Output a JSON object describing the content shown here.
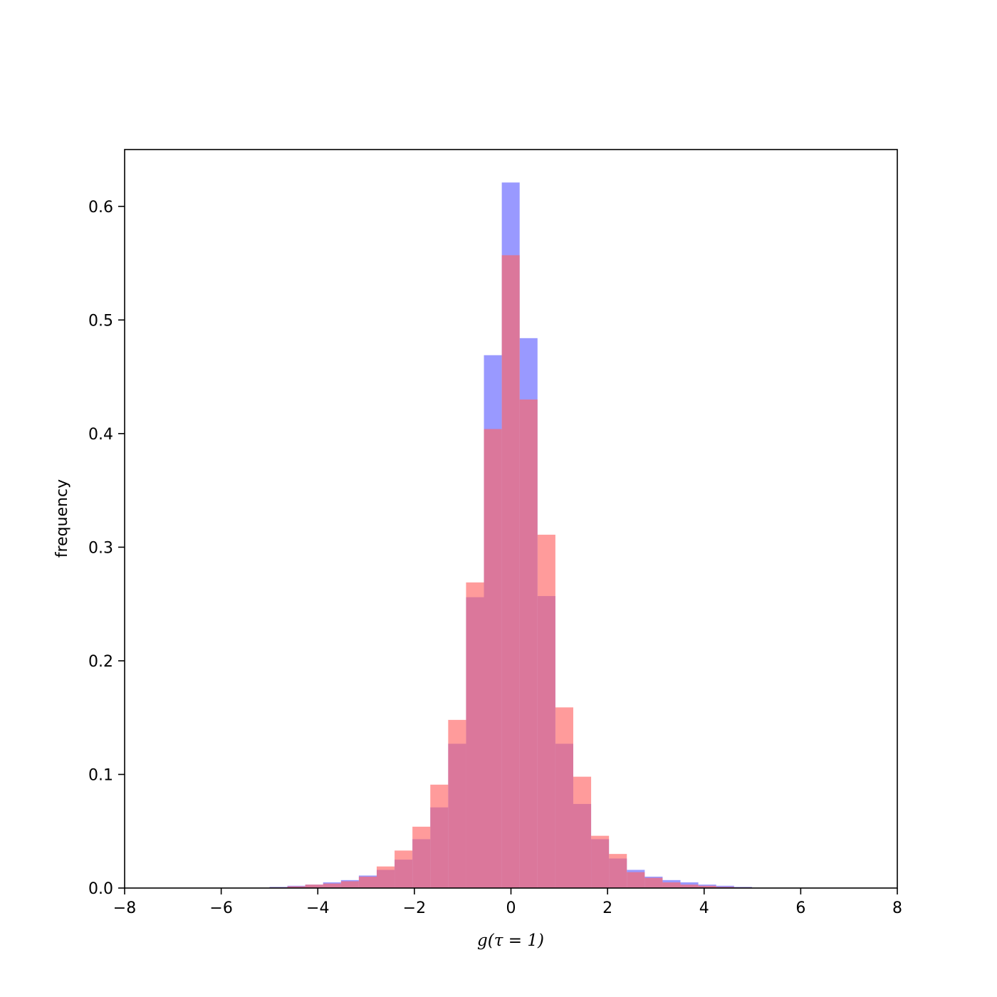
{
  "chart_data": {
    "type": "bar",
    "xlabel": "g(τ = 1)",
    "ylabel": "frequency",
    "xlim": [
      -8,
      8
    ],
    "ylim": [
      0,
      0.65
    ],
    "xticks": [
      -8,
      -6,
      -4,
      -2,
      0,
      2,
      4,
      6,
      8
    ],
    "xtick_labels": [
      "−8",
      "−6",
      "−4",
      "−2",
      "0",
      "2",
      "4",
      "6",
      "8"
    ],
    "yticks": [
      0.0,
      0.1,
      0.2,
      0.3,
      0.4,
      0.5,
      0.6
    ],
    "ytick_labels": [
      "0.0",
      "0.1",
      "0.2",
      "0.3",
      "0.4",
      "0.5",
      "0.6"
    ],
    "grid": false,
    "bin_edges": [
      -5.0,
      -4.63,
      -4.26,
      -3.89,
      -3.52,
      -3.15,
      -2.78,
      -2.41,
      -2.04,
      -1.67,
      -1.3,
      -0.93,
      -0.56,
      -0.19,
      0.18,
      0.55,
      0.92,
      1.29,
      1.66,
      2.03,
      2.4,
      2.77,
      3.14,
      3.51,
      3.88,
      4.25,
      4.62,
      4.99
    ],
    "series": [
      {
        "color": "#9999ff",
        "opacity": 1,
        "values": [
          0.001,
          0.002,
          0.003,
          0.005,
          0.007,
          0.011,
          0.016,
          0.025,
          0.043,
          0.071,
          0.127,
          0.256,
          0.469,
          0.621,
          0.484,
          0.257,
          0.127,
          0.074,
          0.043,
          0.026,
          0.016,
          0.01,
          0.007,
          0.005,
          0.003,
          0.002,
          0.001
        ]
      },
      {
        "color": "#ff6666",
        "opacity": 0.65,
        "values": [
          0.0005,
          0.0015,
          0.003,
          0.004,
          0.006,
          0.01,
          0.019,
          0.033,
          0.054,
          0.091,
          0.148,
          0.269,
          0.404,
          0.557,
          0.43,
          0.311,
          0.159,
          0.098,
          0.046,
          0.03,
          0.014,
          0.009,
          0.005,
          0.003,
          0.002,
          0.001,
          0.0005
        ]
      }
    ]
  }
}
